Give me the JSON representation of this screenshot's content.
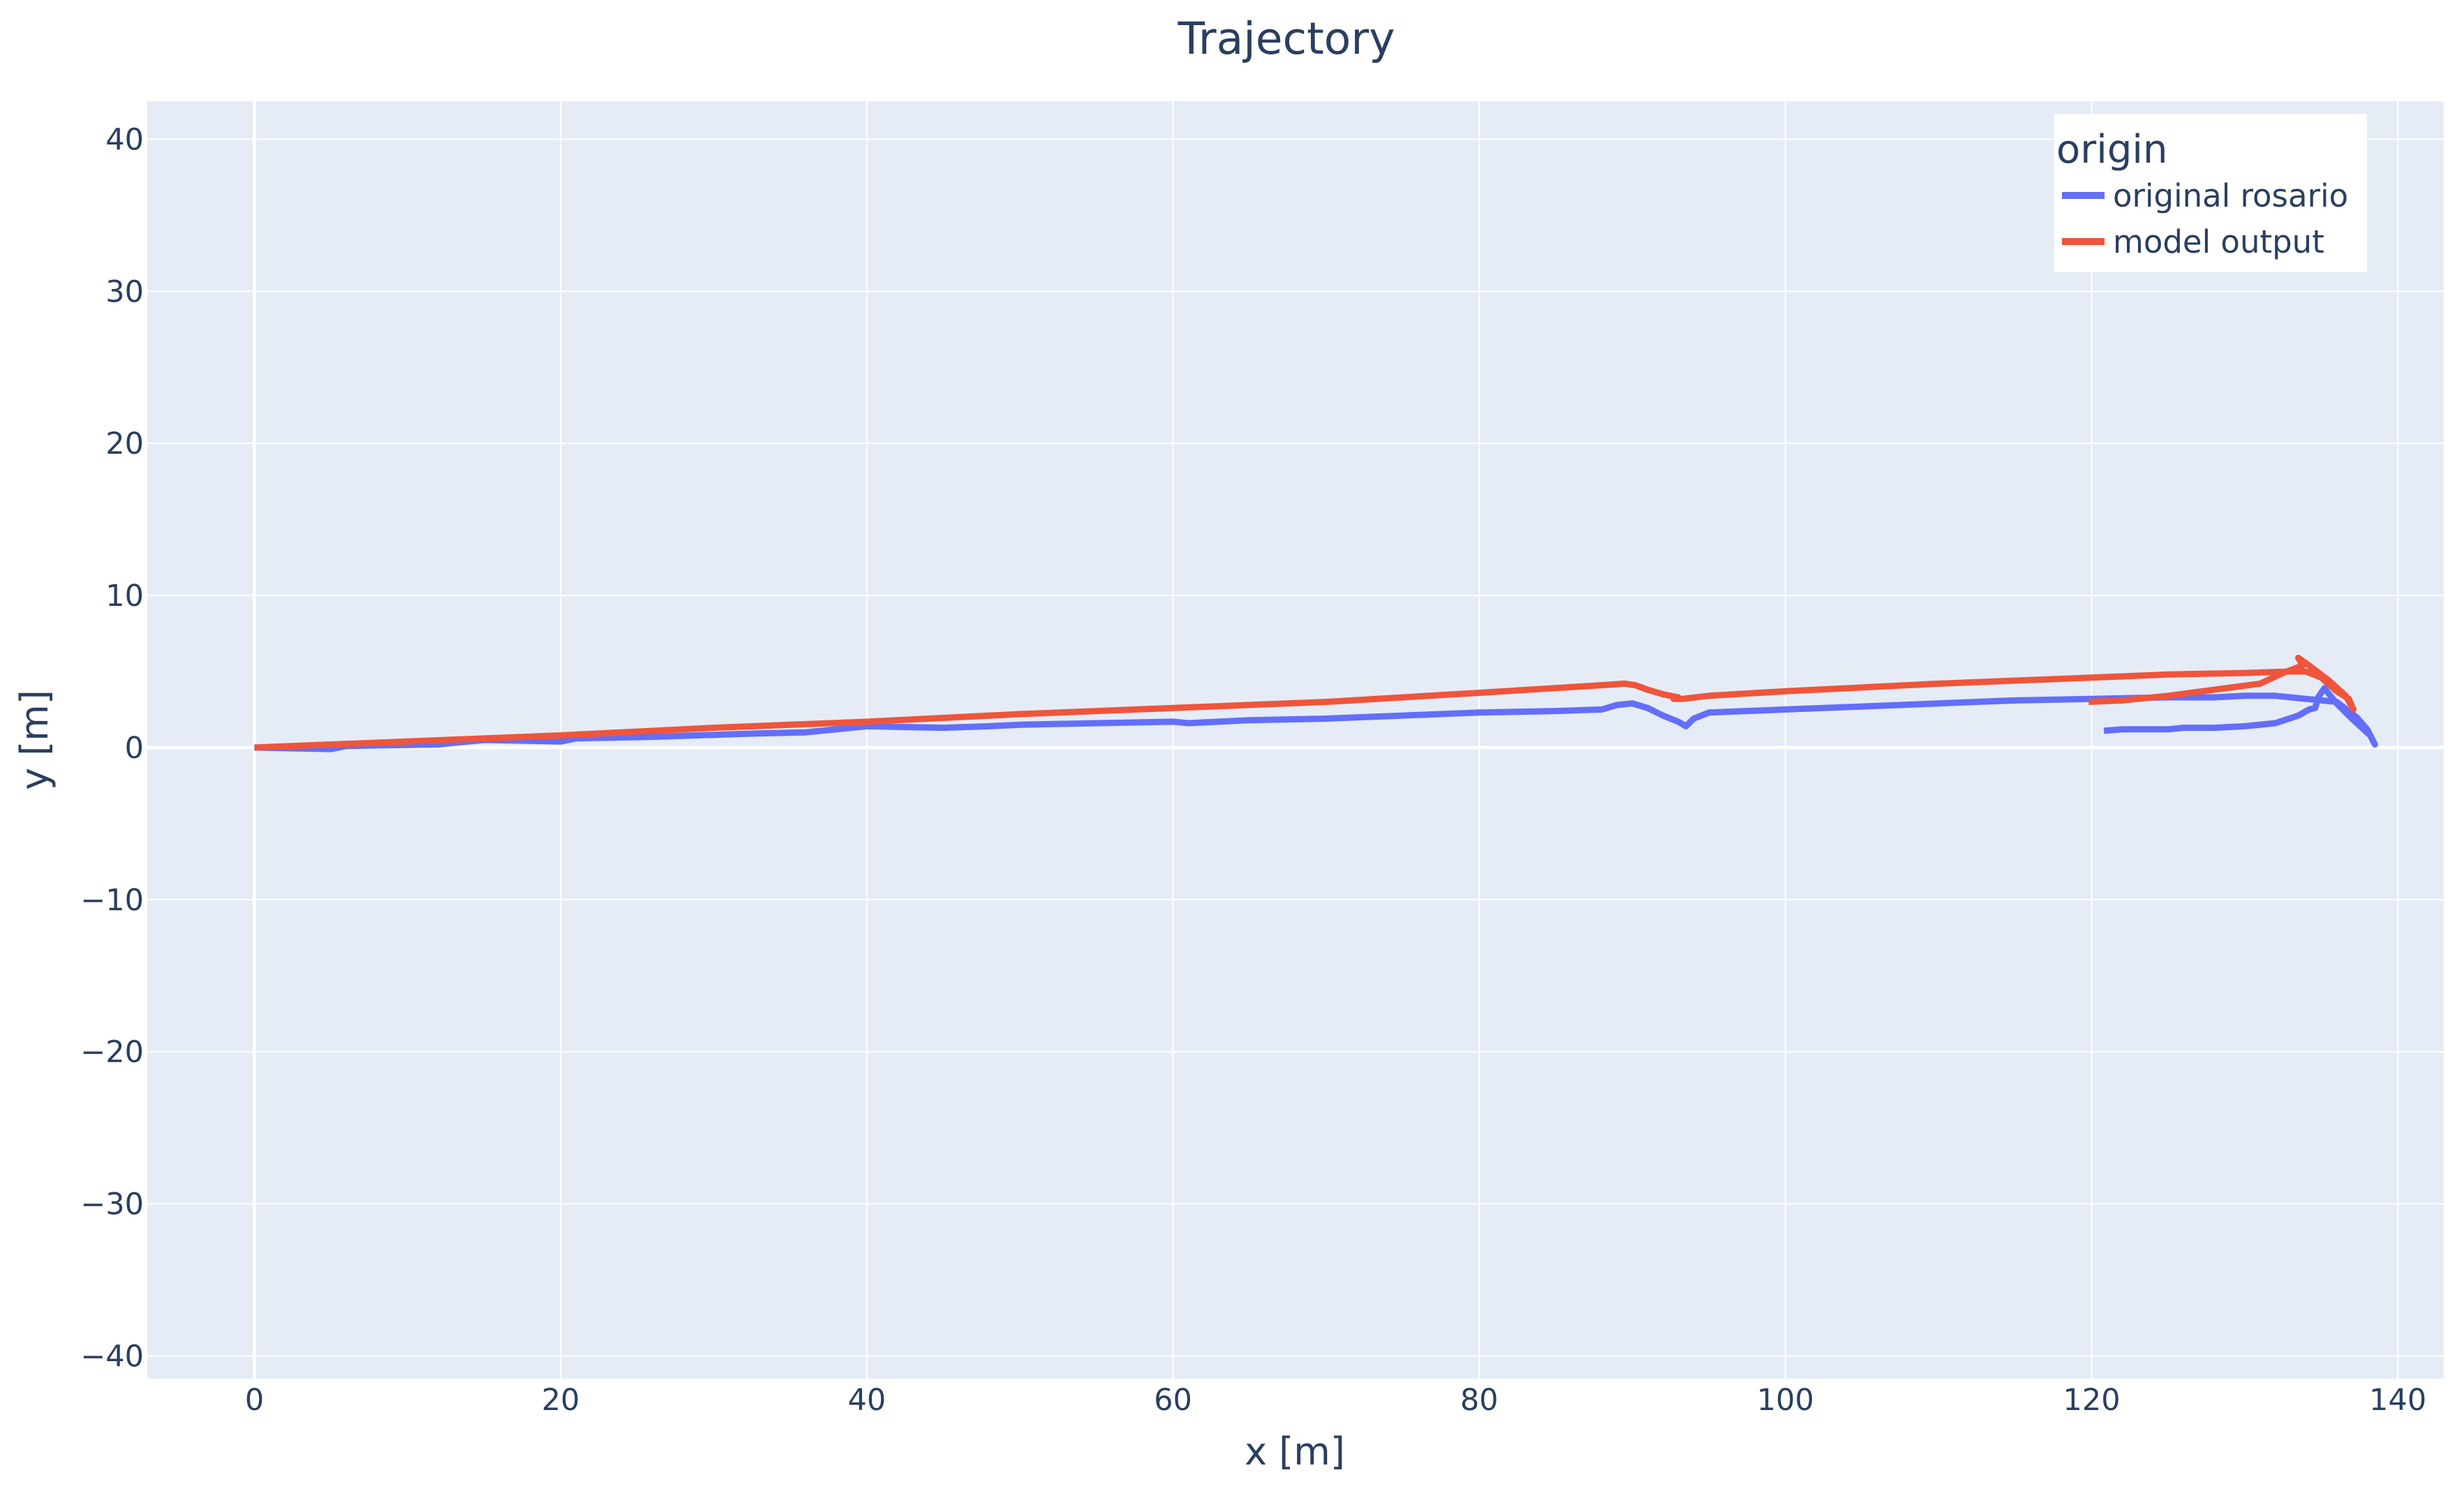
{
  "chart_data": {
    "type": "line",
    "title": "Trajectory",
    "xlabel": "x [m]",
    "ylabel": "y [m]",
    "xlim": [
      -7,
      143
    ],
    "ylim": [
      -41.5,
      42.5
    ],
    "grid": true,
    "background_color": "#e5ecf6",
    "xticks": [
      0,
      20,
      40,
      60,
      80,
      100,
      120,
      140
    ],
    "yticks": [
      40,
      30,
      20,
      10,
      0,
      -10,
      -20,
      -30,
      -40
    ],
    "xtick_labels": [
      "0",
      "20",
      "40",
      "60",
      "80",
      "100",
      "120",
      "140"
    ],
    "ytick_labels": [
      "40",
      "30",
      "20",
      "10",
      "0",
      "−10",
      "−20",
      "−30",
      "−40"
    ],
    "legend": {
      "title": "origin",
      "position": "top-right"
    },
    "series": [
      {
        "name": "original rosario",
        "color": "#636efa",
        "x": [
          0,
          5,
          6,
          12,
          15,
          20,
          21,
          26,
          32,
          36,
          40,
          45,
          48,
          50,
          55,
          60,
          61,
          65,
          70,
          75,
          80,
          85,
          88,
          89,
          90,
          91,
          92,
          93,
          93.5,
          94,
          95,
          100,
          105,
          110,
          115,
          120,
          125,
          128,
          130,
          132,
          134,
          136,
          137.3,
          138,
          138.5,
          138.2,
          137,
          136,
          135.2,
          134.8,
          134.6,
          134.2,
          133.5,
          132,
          130,
          128,
          126,
          125,
          122,
          120.8
        ],
        "y": [
          0,
          -0.1,
          0.1,
          0.2,
          0.5,
          0.4,
          0.6,
          0.7,
          0.9,
          1.0,
          1.4,
          1.3,
          1.4,
          1.5,
          1.6,
          1.7,
          1.6,
          1.8,
          1.9,
          2.1,
          2.3,
          2.4,
          2.5,
          2.8,
          2.9,
          2.6,
          2.1,
          1.7,
          1.4,
          1.9,
          2.3,
          2.5,
          2.7,
          2.9,
          3.1,
          3.2,
          3.3,
          3.3,
          3.4,
          3.4,
          3.2,
          3.0,
          2.0,
          1.2,
          0.2,
          0.8,
          1.9,
          2.9,
          3.9,
          3.3,
          2.6,
          2.5,
          2.1,
          1.6,
          1.4,
          1.3,
          1.3,
          1.2,
          1.2,
          1.1
        ]
      },
      {
        "name": "model output",
        "color": "#ef553b",
        "x": [
          0,
          10,
          20,
          30,
          40,
          50,
          60,
          70,
          80,
          88,
          89.5,
          90.2,
          91,
          92,
          93,
          92.7,
          93.3,
          95,
          100,
          110,
          120,
          125,
          130,
          133,
          134,
          135,
          136,
          136.8,
          137.1,
          136.6,
          135.5,
          134.2,
          133.5,
          133.8,
          132.5,
          131,
          128,
          125,
          122,
          119.8
        ],
        "y": [
          0,
          0.4,
          0.8,
          1.3,
          1.7,
          2.2,
          2.6,
          3.0,
          3.6,
          4.1,
          4.2,
          4.1,
          3.8,
          3.5,
          3.3,
          3.2,
          3.2,
          3.4,
          3.7,
          4.2,
          4.6,
          4.8,
          4.9,
          5.0,
          5.0,
          4.6,
          3.7,
          3.2,
          2.5,
          3.4,
          4.4,
          5.4,
          5.9,
          5.4,
          4.9,
          4.2,
          3.8,
          3.4,
          3.1,
          3.0
        ]
      }
    ]
  }
}
